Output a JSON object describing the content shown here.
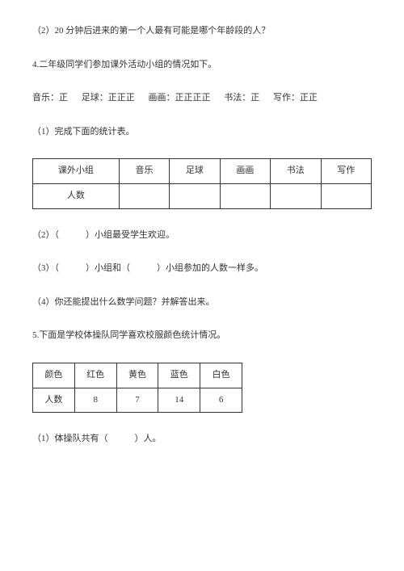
{
  "q2": "（2）20 分钟后进来的第一个人最有可能是哪个年龄段的人？",
  "q4_intro": "4.二年级同学们参加课外活动小组的情况如下。",
  "tally": {
    "music_label": "音乐：",
    "music_marks": "正",
    "football_label": "足球：",
    "football_marks": "正正正",
    "drawing_label": "画画：",
    "drawing_marks": "正正正正",
    "calligraphy_label": "书法：",
    "calligraphy_marks": "正",
    "writing_label": "写作：",
    "writing_marks": "正正"
  },
  "q4_1": "（1）完成下面的统计表。",
  "table1": {
    "headers": [
      "课外小组",
      "音乐",
      "足球",
      "画画",
      "书法",
      "写作"
    ],
    "row_label": "人数",
    "cells": [
      "",
      "",
      "",
      "",
      ""
    ]
  },
  "q4_2": "（2）（　　　）小组最受学生欢迎。",
  "q4_3": "（3）（　　　）小组和（　　　）小组参加的人数一样多。",
  "q4_4": "（4）你还能提出什么数学问题？并解答出来。",
  "q5_intro": "5.下面是学校体操队同学喜欢校服颜色统计情况。",
  "table2": {
    "headers": [
      "颜色",
      "红色",
      "黄色",
      "蓝色",
      "白色"
    ],
    "row_label": "人数",
    "cells": [
      "8",
      "7",
      "14",
      "6"
    ]
  },
  "q5_1": "（1）体操队共有（　　　）人。"
}
